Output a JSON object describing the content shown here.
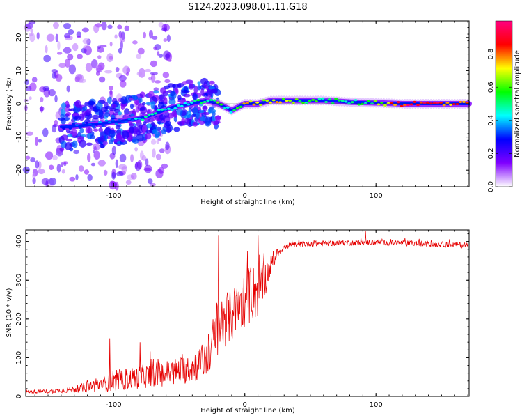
{
  "title": "S124.2023.098.01.11.G18",
  "chart_data": [
    {
      "type": "heatmap",
      "xlabel": "Height of straight line (km)",
      "ylabel": "Frequency (Hz)",
      "xlim": [
        -167,
        171
      ],
      "ylim": [
        -25,
        25
      ],
      "x_ticks": [
        -100,
        0,
        100
      ],
      "y_ticks": [
        -20,
        -10,
        0,
        10,
        20
      ],
      "grid": false,
      "colorbar": {
        "label": "Normalized spectral amplitude",
        "range": [
          0,
          1
        ],
        "ticks": [
          "0.0",
          "0.2",
          "0.4",
          "0.6",
          "0.8"
        ],
        "colors": [
          "#ffffff",
          "#8000ff",
          "#0000ff",
          "#00ffff",
          "#00ff00",
          "#ffff00",
          "#ff0000",
          "#ff0080"
        ]
      },
      "ridge": {
        "x": [
          -135,
          -110,
          -90,
          -75,
          -55,
          -40,
          -30,
          -20,
          -10,
          0,
          10,
          20,
          40,
          60,
          80,
          100,
          120,
          140,
          171
        ],
        "freq": [
          -7,
          -6,
          -5,
          -4,
          -1,
          0,
          1,
          0,
          -2,
          0,
          0,
          1,
          1,
          1,
          0.5,
          0.3,
          0,
          0,
          0
        ],
        "amplitude": [
          0.3,
          0.35,
          0.4,
          0.45,
          0.45,
          0.5,
          0.55,
          0.6,
          0.5,
          0.7,
          0.75,
          0.75,
          0.6,
          0.55,
          0.5,
          0.6,
          0.9,
          0.9,
          0.9
        ]
      }
    },
    {
      "type": "line",
      "xlabel": "Height of straight line (km)",
      "ylabel": "SNR (10 * v/v)",
      "xlim": [
        -167,
        171
      ],
      "ylim": [
        0,
        430
      ],
      "x_ticks": [
        -100,
        0,
        100
      ],
      "y_ticks": [
        0,
        100,
        200,
        300,
        400
      ],
      "grid": false,
      "color": "#e60000",
      "envelope": {
        "x": [
          -167,
          -150,
          -130,
          -110,
          -90,
          -70,
          -50,
          -40,
          -30,
          -25,
          -20,
          -15,
          -10,
          -5,
          0,
          5,
          10,
          15,
          20,
          25,
          30,
          40,
          60,
          80,
          100,
          120,
          140,
          160,
          171
        ],
        "mean": [
          12,
          13,
          18,
          30,
          45,
          55,
          65,
          75,
          95,
          130,
          180,
          200,
          210,
          230,
          250,
          260,
          280,
          300,
          340,
          370,
          385,
          393,
          395,
          397,
          398,
          396,
          393,
          392,
          390
        ],
        "spread": [
          5,
          6,
          10,
          25,
          35,
          40,
          45,
          50,
          60,
          80,
          110,
          90,
          90,
          80,
          90,
          90,
          100,
          60,
          30,
          15,
          10,
          9,
          9,
          9,
          9,
          9,
          9,
          9,
          9
        ]
      },
      "spikes": [
        {
          "x": -20,
          "y": 415
        },
        {
          "x": 10,
          "y": 415
        },
        {
          "x": 92,
          "y": 428
        },
        {
          "x": -103,
          "y": 150
        },
        {
          "x": -80,
          "y": 140
        }
      ]
    }
  ]
}
